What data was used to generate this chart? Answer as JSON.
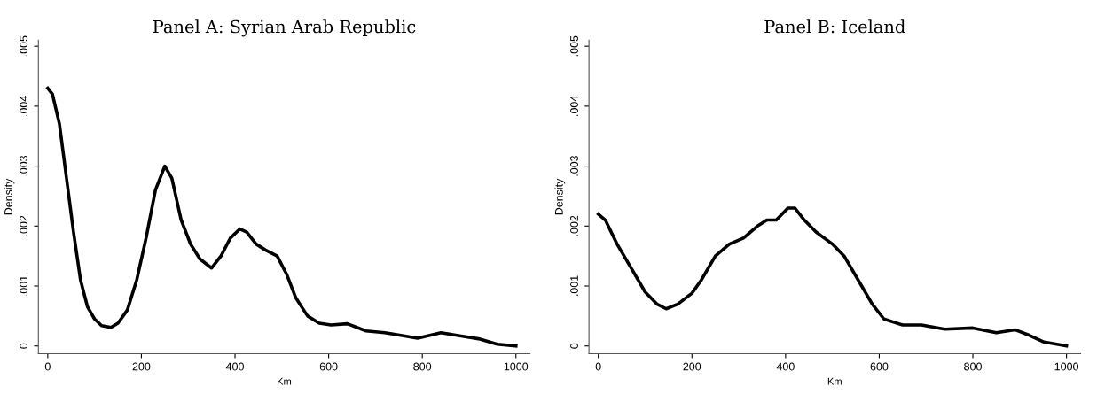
{
  "chart_data": [
    {
      "type": "line",
      "title": "Panel A: Syrian Arab Republic",
      "xlabel": "Km",
      "ylabel": "Density",
      "series": [
        {
          "color": "#000000",
          "x": [
            0,
            10,
            25,
            40,
            55,
            70,
            85,
            100,
            115,
            135,
            150,
            170,
            190,
            210,
            230,
            250,
            265,
            285,
            305,
            325,
            350,
            370,
            390,
            410,
            425,
            445,
            465,
            490,
            510,
            530,
            555,
            580,
            605,
            640,
            680,
            720,
            760,
            790,
            840,
            880,
            920,
            960,
            1000
          ],
          "values": [
            0.0043,
            0.0042,
            0.0037,
            0.0028,
            0.0019,
            0.0011,
            0.00065,
            0.00045,
            0.00034,
            0.00031,
            0.00038,
            0.0006,
            0.0011,
            0.0018,
            0.0026,
            0.003,
            0.0028,
            0.0021,
            0.0017,
            0.00145,
            0.0013,
            0.0015,
            0.0018,
            0.00195,
            0.0019,
            0.0017,
            0.0016,
            0.0015,
            0.0012,
            0.0008,
            0.0005,
            0.00038,
            0.00035,
            0.00037,
            0.00025,
            0.00022,
            0.00017,
            0.00013,
            0.00022,
            0.00017,
            0.00012,
            3e-05,
            0.0
          ]
        }
      ],
      "xlim": [
        -20,
        1030
      ],
      "ylim": [
        -0.00013,
        0.0051
      ],
      "xticks": [
        0,
        200,
        400,
        600,
        800,
        1000
      ],
      "yticks": [
        0,
        {
          "value": 0.001,
          "label": ".001"
        },
        {
          "value": 0.002,
          "label": ".002"
        },
        {
          "value": 0.003,
          "label": ".003"
        },
        {
          "value": 0.004,
          "label": ".004"
        },
        {
          "value": 0.005,
          "label": ".005"
        }
      ],
      "grid": false,
      "legend": false,
      "marker": "none",
      "line_style": "solid"
    },
    {
      "type": "line",
      "title": "Panel B: Iceland",
      "xlabel": "Km",
      "ylabel": "Density",
      "series": [
        {
          "color": "#000000",
          "x": [
            0,
            15,
            40,
            70,
            100,
            125,
            145,
            170,
            200,
            220,
            250,
            280,
            310,
            340,
            360,
            380,
            405,
            420,
            440,
            465,
            500,
            525,
            555,
            585,
            610,
            650,
            690,
            740,
            800,
            850,
            890,
            920,
            950,
            1000
          ],
          "values": [
            0.0022,
            0.0021,
            0.0017,
            0.0013,
            0.0009,
            0.0007,
            0.00062,
            0.0007,
            0.00088,
            0.0011,
            0.0015,
            0.0017,
            0.0018,
            0.002,
            0.0021,
            0.0021,
            0.0023,
            0.0023,
            0.0021,
            0.0019,
            0.0017,
            0.0015,
            0.0011,
            0.0007,
            0.00045,
            0.00035,
            0.00035,
            0.00028,
            0.0003,
            0.00022,
            0.00027,
            0.00018,
            7e-05,
            0.0
          ]
        }
      ],
      "xlim": [
        -20,
        1030
      ],
      "ylim": [
        -0.00013,
        0.0051
      ],
      "xticks": [
        0,
        200,
        400,
        600,
        800,
        1000
      ],
      "yticks": [
        0,
        {
          "value": 0.001,
          "label": ".001"
        },
        {
          "value": 0.002,
          "label": ".002"
        },
        {
          "value": 0.003,
          "label": ".003"
        },
        {
          "value": 0.004,
          "label": ".004"
        },
        {
          "value": 0.005,
          "label": ".005"
        }
      ],
      "grid": false,
      "legend": false,
      "marker": "none",
      "line_style": "solid"
    }
  ]
}
